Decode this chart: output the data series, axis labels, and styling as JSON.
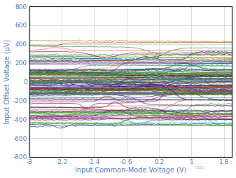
{
  "title": "",
  "xlabel": "Input Common-Mode Voltage (V)",
  "ylabel": "Input Offset Voltage (μV)",
  "xlim": [
    -3.0,
    2.0
  ],
  "ylim": [
    -800,
    800
  ],
  "xticks": [
    -3,
    -2.2,
    -1.4,
    -0.6,
    0.2,
    1.0,
    1.8
  ],
  "xtick_labels": [
    "-3",
    "-2.2",
    "-1.4",
    "-0.6",
    "0.2",
    "1",
    "1.8"
  ],
  "yticks": [
    -800,
    -600,
    -400,
    -200,
    0,
    200,
    400,
    600,
    800
  ],
  "grid_color": "#cccccc",
  "axis_color": "#4472c4",
  "label_color": "#4472c4",
  "num_traces": 120,
  "x_start": -3.0,
  "x_end": 2.0,
  "seed": 7,
  "lw": 0.5
}
